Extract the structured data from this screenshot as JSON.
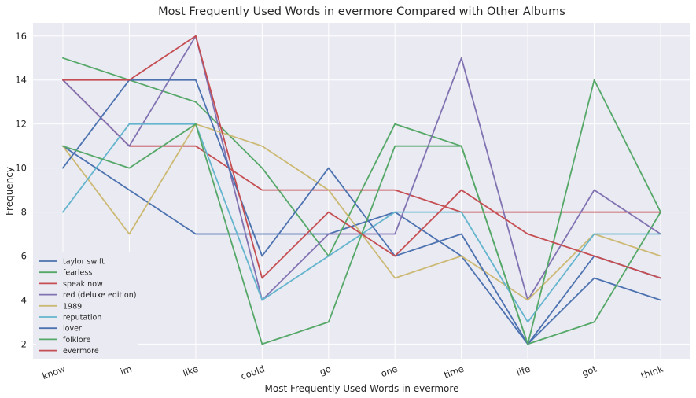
{
  "chart_data": {
    "type": "line",
    "title": "Most Frequently Used Words in evermore Compared with Other Albums",
    "xlabel": "Most Frequently Used Words in evermore",
    "ylabel": "Frequency",
    "categories": [
      "know",
      "im",
      "like",
      "could",
      "go",
      "one",
      "time",
      "life",
      "got",
      "think"
    ],
    "ylim": [
      1.3,
      16.6
    ],
    "yticks": [
      2,
      4,
      6,
      8,
      10,
      12,
      14,
      16
    ],
    "grid": true,
    "legend_position": "bottom-left",
    "series": [
      {
        "name": "taylor swift",
        "color": "#4c72b0",
        "values": [
          11,
          9,
          7,
          7,
          7,
          8,
          6,
          2,
          5,
          4
        ]
      },
      {
        "name": "fearless",
        "color": "#55a868",
        "values": [
          15,
          14,
          13,
          10,
          6,
          12,
          11,
          2,
          3,
          8
        ]
      },
      {
        "name": "speak now",
        "color": "#c44e52",
        "values": [
          14,
          11,
          11,
          9,
          9,
          9,
          8,
          8,
          8,
          8
        ]
      },
      {
        "name": "red (deluxe edition)",
        "color": "#8172b2",
        "values": [
          14,
          11,
          16,
          4,
          7,
          7,
          15,
          4,
          9,
          7
        ]
      },
      {
        "name": "1989",
        "color": "#ccb974",
        "values": [
          11,
          7,
          12,
          11,
          9,
          5,
          6,
          4,
          7,
          6
        ]
      },
      {
        "name": "reputation",
        "color": "#64b5cd",
        "values": [
          8,
          12,
          12,
          4,
          6,
          8,
          8,
          3,
          7,
          7
        ]
      },
      {
        "name": "lover",
        "color": "#4c72b0",
        "values": [
          10,
          14,
          14,
          6,
          10,
          6,
          7,
          2,
          6,
          5
        ]
      },
      {
        "name": "folklore",
        "color": "#55a868",
        "values": [
          11,
          10,
          12,
          2,
          3,
          11,
          11,
          2,
          14,
          8
        ]
      },
      {
        "name": "evermore",
        "color": "#c44e52",
        "values": [
          14,
          14,
          16,
          5,
          8,
          6,
          9,
          7,
          6,
          5
        ]
      }
    ]
  }
}
